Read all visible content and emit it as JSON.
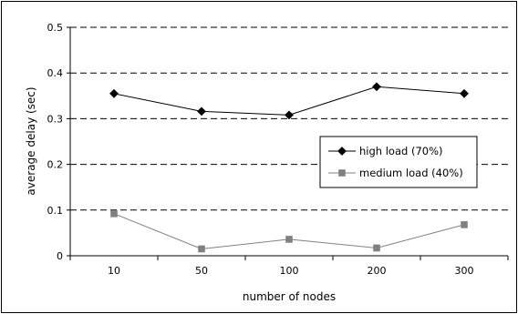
{
  "chart_data": {
    "type": "line",
    "categories": [
      "10",
      "50",
      "100",
      "200",
      "300"
    ],
    "series": [
      {
        "name": "high load (70%)",
        "values": [
          0.355,
          0.316,
          0.308,
          0.37,
          0.355
        ],
        "color": "#000000",
        "marker": "diamond"
      },
      {
        "name": "medium load (40%)",
        "values": [
          0.092,
          0.015,
          0.036,
          0.017,
          0.068
        ],
        "color": "#808080",
        "marker": "square"
      }
    ],
    "xlabel": "number of nodes",
    "ylabel": "average delay (sec)",
    "ylim": [
      0,
      0.5
    ],
    "yticks": [
      "0",
      "0.1",
      "0.2",
      "0.3",
      "0.4",
      "0.5"
    ],
    "grid": "horizontal dashed",
    "legend_position": "right"
  }
}
